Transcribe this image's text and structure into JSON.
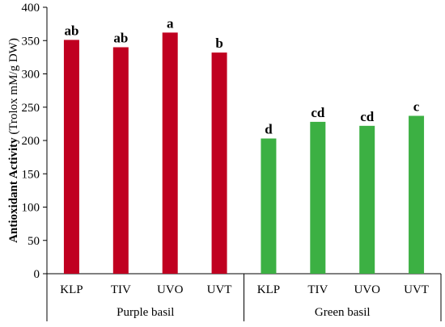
{
  "chart_data": {
    "type": "bar",
    "ylabel": {
      "bold": "Antioxidant Activity",
      "normal": " (Trolox mM/g DW)"
    },
    "ylim": [
      0,
      400
    ],
    "yticks": [
      0,
      50,
      100,
      150,
      200,
      250,
      300,
      350,
      400
    ],
    "grid": false,
    "legend": "none",
    "groups": [
      {
        "name": "Purple basil",
        "color": "#c00020",
        "categories": [
          "KLP",
          "TIV",
          "UVO",
          "UVT"
        ],
        "values": [
          351,
          340,
          362,
          332
        ],
        "labels": [
          "ab",
          "ab",
          "a",
          "b"
        ]
      },
      {
        "name": "Green basil",
        "color": "#3cb043",
        "categories": [
          "KLP",
          "TIV",
          "UVO",
          "UVT"
        ],
        "values": [
          203,
          228,
          222,
          237
        ],
        "labels": [
          "d",
          "cd",
          "cd",
          "c"
        ]
      }
    ]
  }
}
